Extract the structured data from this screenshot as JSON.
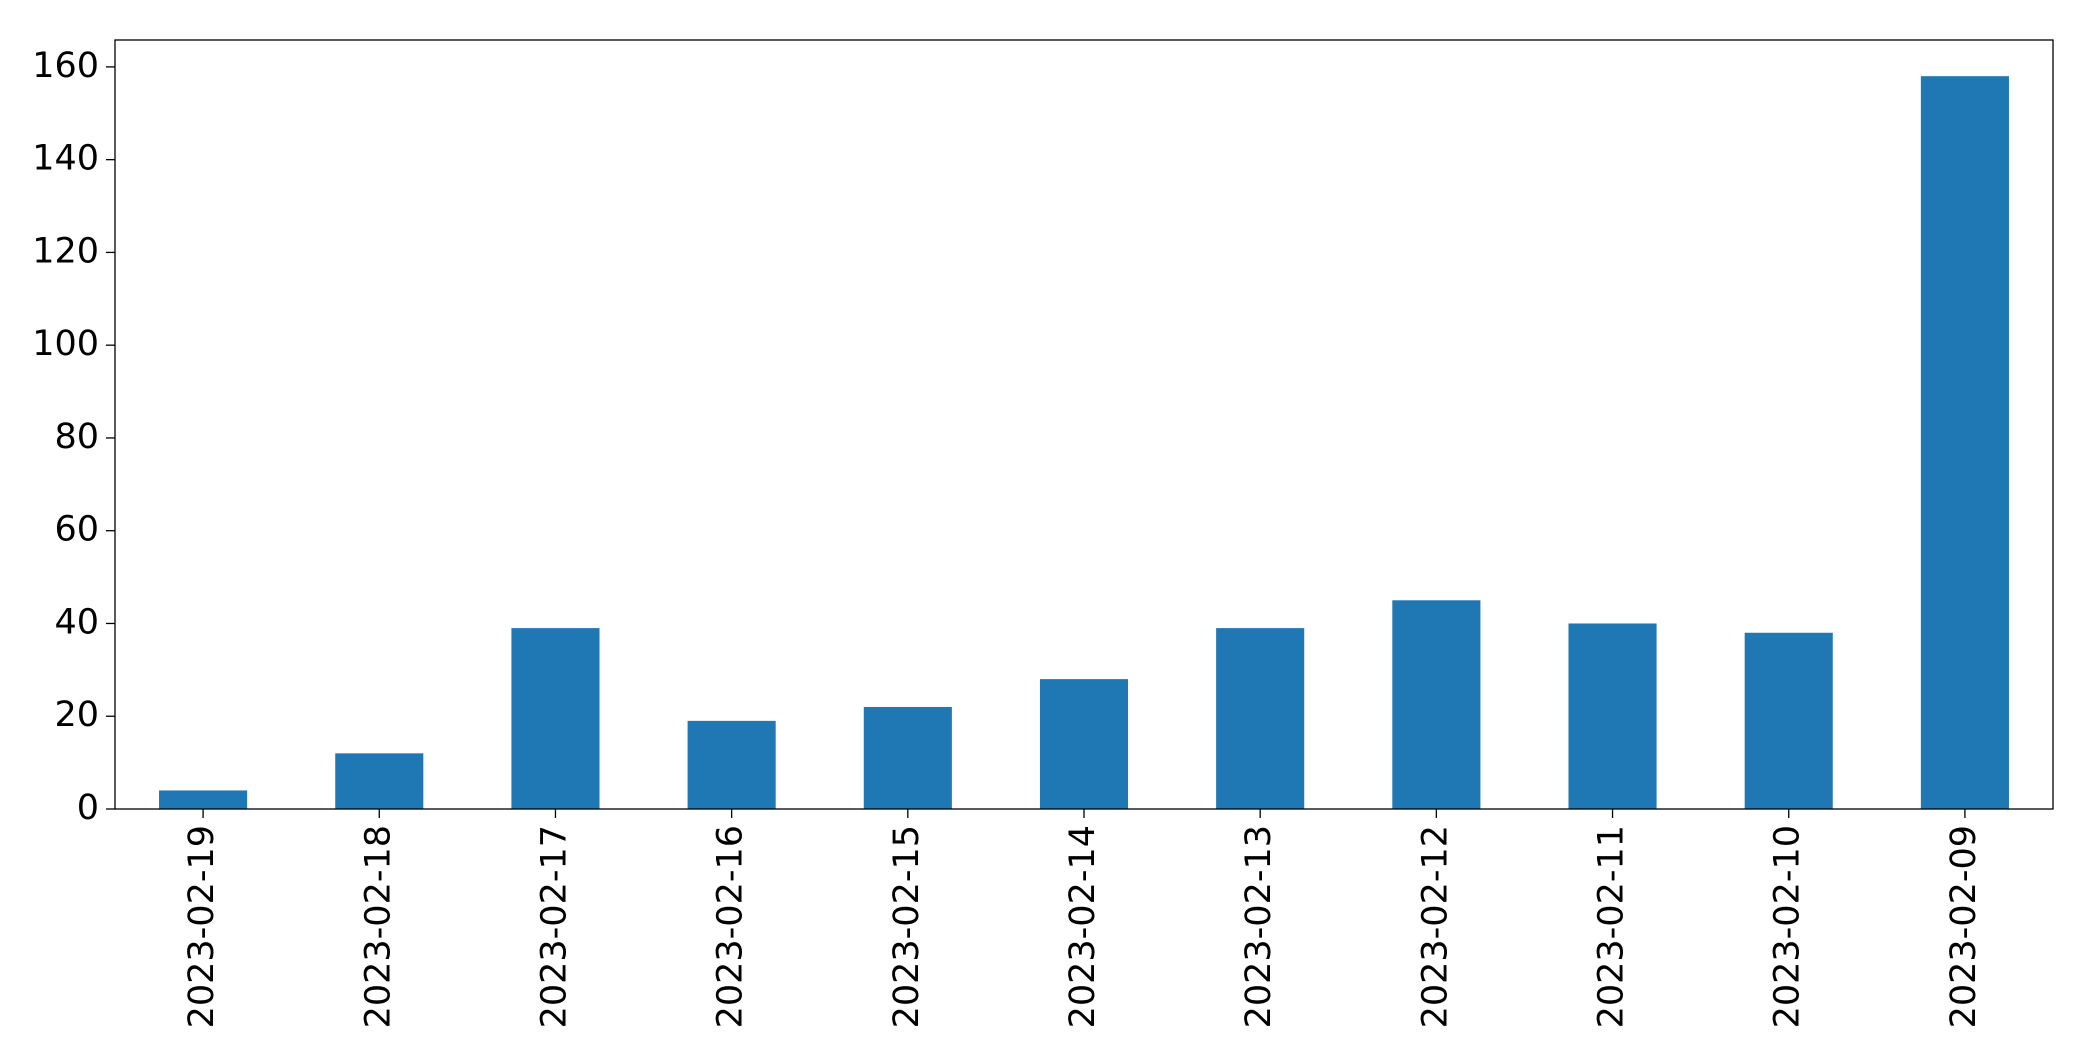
{
  "chart_data": {
    "type": "bar",
    "categories": [
      "2023-02-19",
      "2023-02-18",
      "2023-02-17",
      "2023-02-16",
      "2023-02-15",
      "2023-02-14",
      "2023-02-13",
      "2023-02-12",
      "2023-02-11",
      "2023-02-10",
      "2023-02-09"
    ],
    "values": [
      4,
      12,
      39,
      19,
      22,
      28,
      39,
      45,
      40,
      38,
      158
    ],
    "color": "#1f77b4",
    "ylim": [
      0,
      165.8
    ],
    "yticks": [
      0,
      20,
      40,
      60,
      80,
      100,
      120,
      140,
      160
    ],
    "grid": false
  }
}
